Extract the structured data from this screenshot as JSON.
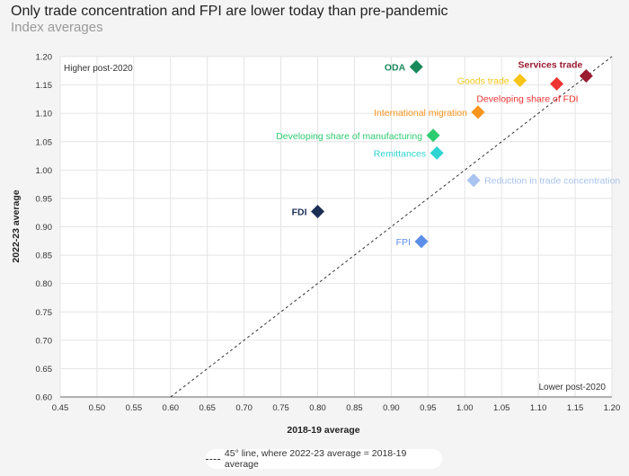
{
  "header": {
    "title": "Only trade concentration and FPI are lower today than pre-pandemic",
    "subtitle": "Index averages"
  },
  "legend": {
    "label": "45° line, where 2022-23 average = 2018-19 average"
  },
  "chart_data": {
    "type": "scatter",
    "xlabel": "2018-19 average",
    "ylabel": "2022-23 average",
    "xlim": [
      0.45,
      1.2
    ],
    "ylim": [
      0.6,
      1.2
    ],
    "x_ticks": [
      "0.45",
      "0.50",
      "0.55",
      "0.60",
      "0.65",
      "0.70",
      "0.75",
      "0.80",
      "0.85",
      "0.90",
      "0.95",
      "1.00",
      "1.05",
      "1.10",
      "1.15",
      "1.20"
    ],
    "y_ticks": [
      "0.60",
      "0.65",
      "0.70",
      "0.75",
      "0.80",
      "0.85",
      "0.90",
      "0.95",
      "1.00",
      "1.05",
      "1.10",
      "1.15",
      "1.20"
    ],
    "grid": true,
    "reference_line": "45-degree, dashed",
    "annotations": {
      "top_left": "Higher post-2020",
      "bottom_right": "Lower post-2020"
    },
    "points": [
      {
        "label": "ODA",
        "x": 0.934,
        "y": 1.182,
        "color": "#1a8a5a",
        "label_side": "left",
        "bold": true
      },
      {
        "label": "Services trade",
        "x": 1.165,
        "y": 1.166,
        "color": "#9b1b30",
        "label_side": "above-left",
        "bold": true
      },
      {
        "label": "Goods trade",
        "x": 1.075,
        "y": 1.158,
        "color": "#f5c518",
        "label_side": "left",
        "bold": false
      },
      {
        "label": "Developing share of FDI",
        "x": 1.125,
        "y": 1.152,
        "color": "#ee3333",
        "label_side": "below-right",
        "bold": false
      },
      {
        "label": "International migration",
        "x": 1.018,
        "y": 1.102,
        "color": "#f7941d",
        "label_side": "left",
        "bold": false
      },
      {
        "label": "Developing share of manufacturing",
        "x": 0.957,
        "y": 1.061,
        "color": "#2ecc71",
        "label_side": "left",
        "bold": false
      },
      {
        "label": "Remittances",
        "x": 0.962,
        "y": 1.03,
        "color": "#2ed3d3",
        "label_side": "left",
        "bold": false
      },
      {
        "label": "Reduction in trade concentration",
        "x": 1.012,
        "y": 0.982,
        "color": "#a9c4f0",
        "label_side": "right",
        "bold": false
      },
      {
        "label": "FDI",
        "x": 0.8,
        "y": 0.927,
        "color": "#1b2f55",
        "label_side": "left",
        "bold": true
      },
      {
        "label": "FPI",
        "x": 0.941,
        "y": 0.874,
        "color": "#5b8ee6",
        "label_side": "left",
        "bold": false
      }
    ]
  }
}
